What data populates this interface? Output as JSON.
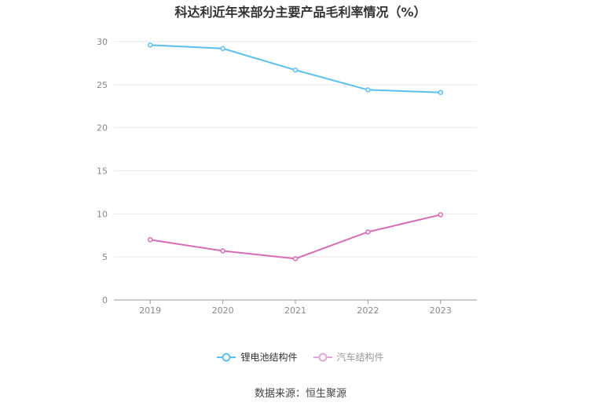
{
  "chart_data": {
    "type": "line",
    "title": "科达利近年来部分主要产品毛利率情况（%）",
    "categories": [
      "2019",
      "2020",
      "2021",
      "2022",
      "2023"
    ],
    "ylim": [
      0,
      30
    ],
    "yticks": [
      "0",
      "5",
      "10",
      "15",
      "20",
      "25",
      "30"
    ],
    "grid": true,
    "legend_position": "bottom",
    "series": [
      {
        "name": "锂电池结构件",
        "color": "#5bc0f0",
        "values": [
          29.6,
          29.2,
          26.7,
          24.4,
          24.1
        ]
      },
      {
        "name": "汽车结构件",
        "color": "#d96bb5",
        "values": [
          7.0,
          5.7,
          4.8,
          7.9,
          9.9
        ]
      }
    ]
  },
  "source": "数据来源：恒生聚源"
}
